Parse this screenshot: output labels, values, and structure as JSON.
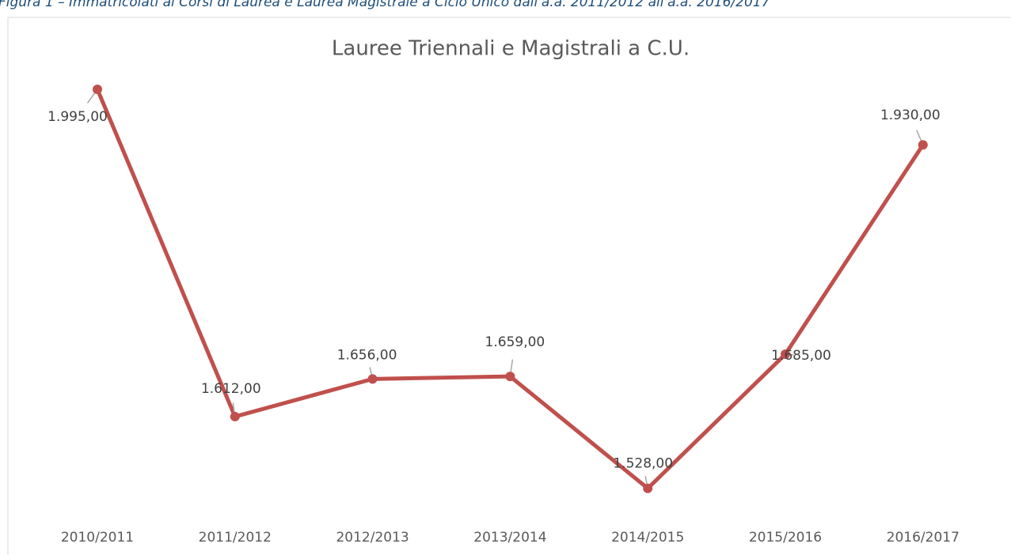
{
  "caption": "Figura 1 – Immatricolati ai Corsi di Laurea e Laurea Magistrale a Ciclo Unico dall'a.a. 2011/2012 all'a.a. 2016/2017",
  "chart_data": {
    "type": "line",
    "title": "Lauree Triennali e Magistrali a C.U.",
    "categories": [
      "2010/2011",
      "2011/2012",
      "2012/2013",
      "2013/2014",
      "2014/2015",
      "2015/2016",
      "2016/2017"
    ],
    "series": [
      {
        "name": "Lauree Triennali e Magistrali a C.U.",
        "color": "#c0504d",
        "values": [
          1995,
          1612,
          1656,
          1659,
          1528,
          1685,
          1930
        ],
        "value_labels": [
          "1.995,00",
          "1.612,00",
          "1.656,00",
          "1.659,00",
          "1.528,00",
          "1.685,00",
          "1.930,00"
        ]
      }
    ],
    "ylim": [
      1500,
      2050
    ]
  }
}
